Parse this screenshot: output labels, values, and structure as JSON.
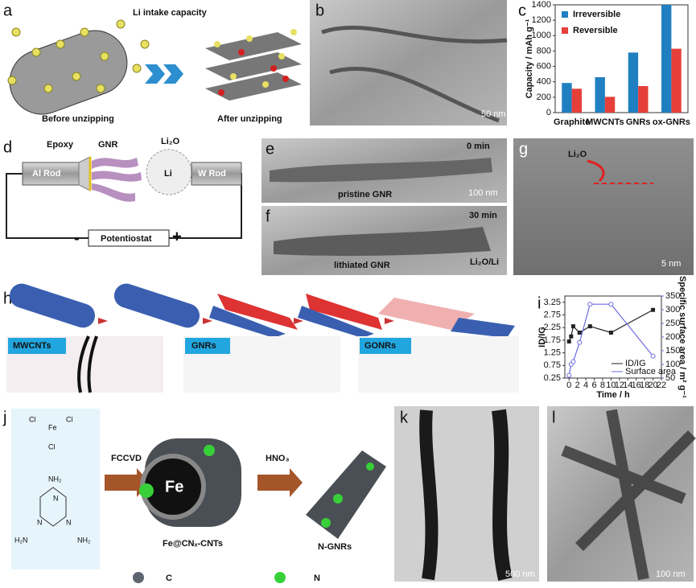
{
  "panels": {
    "a": {
      "label": "a",
      "title": "Li intake capacity",
      "before": "Before unzipping",
      "after": "After unzipping"
    },
    "b": {
      "label": "b",
      "scale": "50 nm"
    },
    "c": {
      "label": "c"
    },
    "d": {
      "label": "d",
      "epoxy": "Epoxy",
      "gnr": "GNR",
      "li2o": "Li₂O",
      "li": "Li",
      "al_rod": "Al Rod",
      "w_rod": "W Rod",
      "potentiostat": "Potentiostat",
      "minus": "-",
      "plus": "+"
    },
    "e": {
      "label": "e",
      "time": "0 min",
      "caption": "pristine GNR",
      "scale": "100 nm"
    },
    "f": {
      "label": "f",
      "time": "30 min",
      "caption": "lithiated GNR",
      "annotation": "Li₂O/Li"
    },
    "g": {
      "label": "g",
      "annotation": "Li₂O",
      "scale": "5 nm"
    },
    "h": {
      "label": "h",
      "tags": [
        "MWCNTs",
        "GNRs",
        "GONRs"
      ]
    },
    "i": {
      "label": "i"
    },
    "j": {
      "label": "j",
      "step1": "FCCVD",
      "step2": "HNO₃",
      "core": "Fe",
      "product1": "Fe@CNₓ-CNTs",
      "product2": "N-GNRs",
      "legend_c": "C",
      "legend_n": "N",
      "molecule": [
        "Cl",
        "Fe",
        "Cl",
        "Cl",
        "NH₂",
        "N",
        "N",
        "N",
        "H₂N",
        "NH₂"
      ]
    },
    "k": {
      "label": "k",
      "scale": "500 nm"
    },
    "l": {
      "label": "l",
      "scale": "100 nm"
    }
  },
  "chart_data": [
    {
      "type": "bar",
      "y_label": "Capacity / mAh g⁻¹",
      "categories": [
        "Graphite",
        "MWCNTs",
        "GNRs",
        "ox-GNRs"
      ],
      "series": [
        {
          "name": "Irreversible",
          "color": "#1f7fc1",
          "values": [
            385,
            460,
            780,
            1400
          ]
        },
        {
          "name": "Reversible",
          "color": "#e63f3a",
          "values": [
            310,
            205,
            345,
            830
          ]
        }
      ],
      "ylim": [
        0,
        1400
      ],
      "yticks": [
        0,
        200,
        400,
        600,
        800,
        1000,
        1200,
        1400
      ],
      "legend": "upper left"
    },
    {
      "type": "line",
      "x_label": "Time / h",
      "y_label": "ID/IG",
      "y2_label": "Specific surface area / m² g⁻¹",
      "x": [
        0,
        0.5,
        1,
        2.5,
        5,
        10,
        20
      ],
      "series": [
        {
          "name": "ID/IG",
          "color": "#222222",
          "marker": "square",
          "values": [
            1.7,
            1.9,
            2.3,
            2.05,
            2.3,
            2.05,
            2.95
          ]
        },
        {
          "name": "Surface area",
          "color": "#6a6ae0",
          "marker": "circle",
          "axis": "y2",
          "values": [
            60,
            100,
            110,
            180,
            320,
            320,
            130
          ]
        }
      ],
      "xlim": [
        -1,
        22
      ],
      "xticks": [
        0,
        2,
        4,
        6,
        8,
        10,
        12,
        14,
        16,
        18,
        20,
        22
      ],
      "ylim": [
        0.25,
        3.5
      ],
      "yticks": [
        0.25,
        0.75,
        1.25,
        1.75,
        2.25,
        2.75,
        3.25
      ],
      "y2lim": [
        50,
        350
      ],
      "y2ticks": [
        50,
        100,
        150,
        200,
        250,
        300,
        350
      ],
      "legend": "lower right"
    }
  ]
}
